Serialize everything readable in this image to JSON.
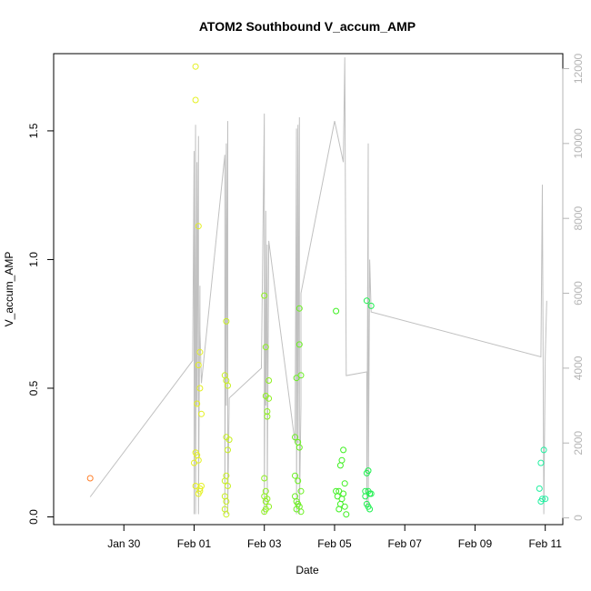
{
  "chart_data": {
    "type": "scatter",
    "title": "ATOM2 Southbound V_accum_AMP",
    "xlabel": "Date",
    "ylabel": "V_accum_AMP",
    "xlim": [
      "2024-01-28T00:00",
      "2024-02-11T12:00"
    ],
    "ylim_left": [
      -0.03,
      1.8
    ],
    "ylim_right": [
      -180,
      12400
    ],
    "x_ticks": [
      {
        "value": "2024-01-30",
        "label": "Jan 30"
      },
      {
        "value": "2024-02-01",
        "label": "Feb 01"
      },
      {
        "value": "2024-02-03",
        "label": "Feb 03"
      },
      {
        "value": "2024-02-05",
        "label": "Feb 05"
      },
      {
        "value": "2024-02-07",
        "label": "Feb 07"
      },
      {
        "value": "2024-02-09",
        "label": "Feb 09"
      },
      {
        "value": "2024-02-11",
        "label": "Feb 11"
      }
    ],
    "y_ticks_left": [
      {
        "value": 0.0,
        "label": "0.0"
      },
      {
        "value": 0.5,
        "label": "0.5"
      },
      {
        "value": 1.0,
        "label": "1.0"
      },
      {
        "value": 1.5,
        "label": "1.5"
      }
    ],
    "y_ticks_right": [
      {
        "value": 0,
        "label": "0"
      },
      {
        "value": 2000,
        "label": "2000"
      },
      {
        "value": 4000,
        "label": "4000"
      },
      {
        "value": 6000,
        "label": "6000"
      },
      {
        "value": 8000,
        "label": "8000"
      },
      {
        "value": 10000,
        "label": "10000"
      },
      {
        "value": 12000,
        "label": "12000"
      }
    ],
    "line_color": "#c0c0c0",
    "right_axis_color": "#b5b5b5",
    "series": [
      {
        "color": "#ff7f2a",
        "values": [
          [
            "2024-01-29T01:00",
            0.15
          ]
        ]
      },
      {
        "color": "#e4f020",
        "values": [
          [
            "2024-02-01T01:00",
            1.75
          ],
          [
            "2024-02-01T01:00",
            1.62
          ],
          [
            "2024-02-01T03:00",
            1.13
          ],
          [
            "2024-02-01T03:00",
            0.59
          ],
          [
            "2024-02-01T04:00",
            0.64
          ],
          [
            "2024-02-01T02:00",
            0.44
          ],
          [
            "2024-02-01T04:00",
            0.5
          ],
          [
            "2024-02-01T05:00",
            0.4
          ],
          [
            "2024-02-01T01:00",
            0.25
          ],
          [
            "2024-02-01T02:00",
            0.24
          ],
          [
            "2024-02-01T00:00",
            0.21
          ],
          [
            "2024-02-01T03:00",
            0.22
          ],
          [
            "2024-02-01T01:00",
            0.12
          ],
          [
            "2024-02-01T04:00",
            0.11
          ],
          [
            "2024-02-01T04:00",
            0.1
          ],
          [
            "2024-02-01T05:00",
            0.12
          ],
          [
            "2024-02-01T03:00",
            0.09
          ]
        ]
      },
      {
        "color": "#c8f020",
        "values": [
          [
            "2024-02-01T22:00",
            0.76
          ],
          [
            "2024-02-01T21:00",
            0.55
          ],
          [
            "2024-02-01T22:00",
            0.53
          ],
          [
            "2024-02-01T23:00",
            0.51
          ],
          [
            "2024-02-01T22:00",
            0.31
          ],
          [
            "2024-02-02T00:00",
            0.3
          ],
          [
            "2024-02-01T23:00",
            0.26
          ],
          [
            "2024-02-01T22:00",
            0.16
          ],
          [
            "2024-02-01T21:00",
            0.14
          ],
          [
            "2024-02-01T23:00",
            0.12
          ],
          [
            "2024-02-01T21:00",
            0.08
          ],
          [
            "2024-02-01T22:00",
            0.06
          ],
          [
            "2024-02-01T21:00",
            0.03
          ],
          [
            "2024-02-01T22:00",
            0.01
          ]
        ]
      },
      {
        "color": "#8ef020",
        "values": [
          [
            "2024-02-03T00:00",
            0.86
          ],
          [
            "2024-02-03T01:00",
            0.66
          ],
          [
            "2024-02-03T03:00",
            0.53
          ],
          [
            "2024-02-03T01:00",
            0.47
          ],
          [
            "2024-02-03T03:00",
            0.46
          ],
          [
            "2024-02-03T02:00",
            0.41
          ],
          [
            "2024-02-03T02:00",
            0.39
          ],
          [
            "2024-02-03T00:00",
            0.15
          ],
          [
            "2024-02-03T01:00",
            0.1
          ],
          [
            "2024-02-03T00:00",
            0.08
          ],
          [
            "2024-02-03T02:00",
            0.07
          ],
          [
            "2024-02-03T01:00",
            0.06
          ],
          [
            "2024-02-03T03:00",
            0.04
          ],
          [
            "2024-02-03T00:00",
            0.02
          ],
          [
            "2024-02-03T01:00",
            0.03
          ]
        ]
      },
      {
        "color": "#6af020",
        "values": [
          [
            "2024-02-04T00:00",
            0.81
          ],
          [
            "2024-02-04T00:00",
            0.67
          ],
          [
            "2024-02-04T01:00",
            0.55
          ],
          [
            "2024-02-03T22:00",
            0.54
          ],
          [
            "2024-02-03T21:00",
            0.31
          ],
          [
            "2024-02-03T23:00",
            0.29
          ],
          [
            "2024-02-04T00:00",
            0.27
          ],
          [
            "2024-02-03T21:00",
            0.16
          ],
          [
            "2024-02-03T23:00",
            0.14
          ],
          [
            "2024-02-04T01:00",
            0.1
          ],
          [
            "2024-02-03T21:00",
            0.08
          ],
          [
            "2024-02-03T22:00",
            0.06
          ],
          [
            "2024-02-03T23:00",
            0.05
          ],
          [
            "2024-02-04T00:00",
            0.04
          ],
          [
            "2024-02-03T22:00",
            0.03
          ],
          [
            "2024-02-04T01:00",
            0.02
          ]
        ]
      },
      {
        "color": "#3ef020",
        "values": [
          [
            "2024-02-05T01:00",
            0.8
          ],
          [
            "2024-02-05T06:00",
            0.26
          ],
          [
            "2024-02-05T05:00",
            0.22
          ],
          [
            "2024-02-05T04:00",
            0.2
          ],
          [
            "2024-02-05T07:00",
            0.13
          ],
          [
            "2024-02-05T01:00",
            0.1
          ],
          [
            "2024-02-05T03:00",
            0.1
          ],
          [
            "2024-02-05T06:00",
            0.09
          ],
          [
            "2024-02-05T02:00",
            0.08
          ],
          [
            "2024-02-05T05:00",
            0.07
          ],
          [
            "2024-02-05T04:00",
            0.05
          ],
          [
            "2024-02-05T07:00",
            0.04
          ],
          [
            "2024-02-05T03:00",
            0.03
          ],
          [
            "2024-02-05T08:00",
            0.01
          ]
        ]
      },
      {
        "color": "#20f050",
        "values": [
          [
            "2024-02-05T22:00",
            0.84
          ],
          [
            "2024-02-06T01:00",
            0.82
          ],
          [
            "2024-02-05T23:00",
            0.18
          ],
          [
            "2024-02-05T22:00",
            0.17
          ],
          [
            "2024-02-05T21:00",
            0.1
          ],
          [
            "2024-02-05T23:00",
            0.1
          ],
          [
            "2024-02-06T00:00",
            0.09
          ],
          [
            "2024-02-06T01:00",
            0.09
          ],
          [
            "2024-02-05T21:00",
            0.08
          ],
          [
            "2024-02-05T22:00",
            0.05
          ],
          [
            "2024-02-05T23:00",
            0.04
          ],
          [
            "2024-02-06T00:00",
            0.03
          ]
        ]
      },
      {
        "color": "#20f0a0",
        "values": [
          [
            "2024-02-10T23:00",
            0.26
          ],
          [
            "2024-02-10T21:00",
            0.21
          ],
          [
            "2024-02-10T20:00",
            0.11
          ],
          [
            "2024-02-11T00:00",
            0.07
          ],
          [
            "2024-02-10T22:00",
            0.07
          ],
          [
            "2024-02-10T21:00",
            0.06
          ]
        ]
      }
    ],
    "right_series": {
      "color": "#c0c0c0",
      "values": [
        [
          "2024-01-29T01:00",
          560
        ],
        [
          "2024-01-31T23:00",
          4200
        ],
        [
          "2024-02-01T00:00",
          9800
        ],
        [
          "2024-02-01T00:00",
          100
        ],
        [
          "2024-02-01T01:00",
          10500
        ],
        [
          "2024-02-01T01:00",
          100
        ],
        [
          "2024-02-01T02:00",
          9500
        ],
        [
          "2024-02-01T02:00",
          3000
        ],
        [
          "2024-02-01T03:00",
          10200
        ],
        [
          "2024-02-01T03:00",
          100
        ],
        [
          "2024-02-01T04:00",
          6200
        ],
        [
          "2024-02-01T04:00",
          5000
        ],
        [
          "2024-02-01T05:00",
          3600
        ],
        [
          "2024-02-01T21:00",
          9700
        ],
        [
          "2024-02-01T21:00",
          100
        ],
        [
          "2024-02-01T22:00",
          10000
        ],
        [
          "2024-02-01T22:00",
          3000
        ],
        [
          "2024-02-01T23:00",
          10600
        ],
        [
          "2024-02-01T23:00",
          100
        ],
        [
          "2024-02-02T00:00",
          3200
        ],
        [
          "2024-02-02T22:00",
          4000
        ],
        [
          "2024-02-03T00:00",
          10800
        ],
        [
          "2024-02-03T00:00",
          100
        ],
        [
          "2024-02-03T01:00",
          8200
        ],
        [
          "2024-02-03T01:00",
          3000
        ],
        [
          "2024-02-03T02:00",
          7300
        ],
        [
          "2024-02-03T02:00",
          300
        ],
        [
          "2024-02-03T03:00",
          7400
        ],
        [
          "2024-02-03T21:00",
          2000
        ],
        [
          "2024-02-03T22:00",
          10400
        ],
        [
          "2024-02-03T22:00",
          100
        ],
        [
          "2024-02-03T23:00",
          10500
        ],
        [
          "2024-02-03T23:00",
          2000
        ],
        [
          "2024-02-04T00:00",
          10700
        ],
        [
          "2024-02-04T00:00",
          100
        ],
        [
          "2024-02-04T01:00",
          3000
        ],
        [
          "2024-02-04T01:00",
          6000
        ],
        [
          "2024-02-05T00:00",
          10600
        ],
        [
          "2024-02-05T06:00",
          9500
        ],
        [
          "2024-02-05T07:00",
          12300
        ],
        [
          "2024-02-05T08:00",
          3800
        ],
        [
          "2024-02-05T22:00",
          3900
        ],
        [
          "2024-02-05T22:00",
          300
        ],
        [
          "2024-02-05T23:00",
          10000
        ],
        [
          "2024-02-05T23:00",
          300
        ],
        [
          "2024-02-06T00:00",
          6900
        ],
        [
          "2024-02-06T01:00",
          5500
        ],
        [
          "2024-02-10T21:00",
          4300
        ],
        [
          "2024-02-10T22:00",
          8900
        ],
        [
          "2024-02-10T23:00",
          100
        ],
        [
          "2024-02-11T00:00",
          4300
        ],
        [
          "2024-02-11T01:00",
          5800
        ]
      ]
    }
  }
}
